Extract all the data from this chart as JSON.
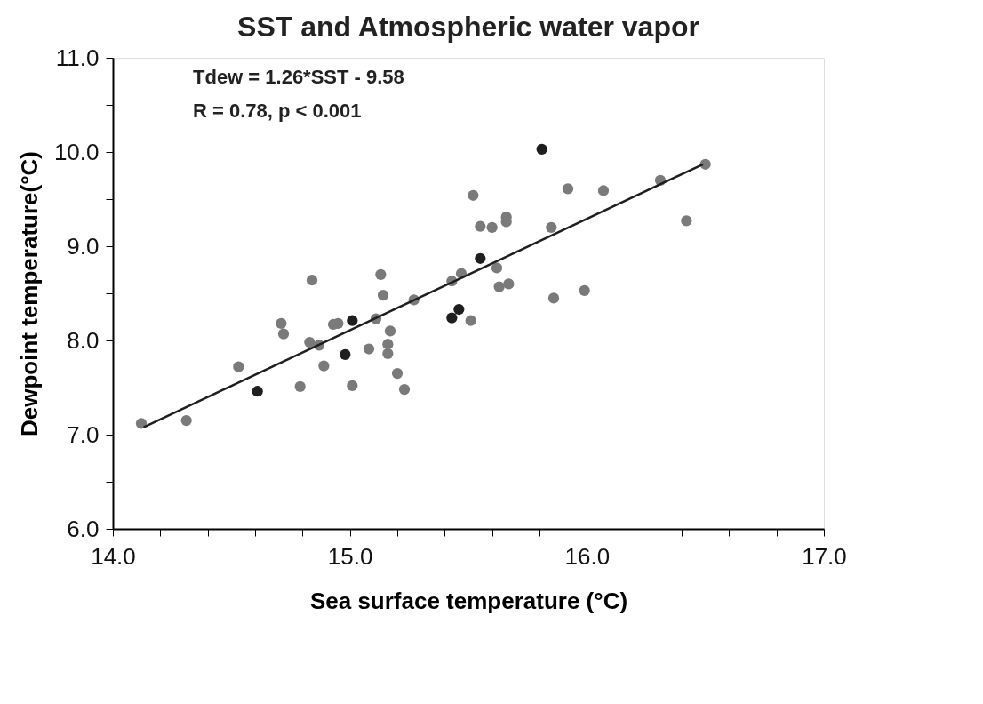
{
  "chart_data": {
    "type": "scatter",
    "title": "SST and Atmospheric water vapor",
    "xlabel": "Sea surface temperature (°C)",
    "ylabel": "Dewpoint temperature(°C)",
    "annotations": [
      "Tdew = 1.26*SST - 9.58",
      "R = 0.78, p < 0.001"
    ],
    "xlim": [
      14.0,
      17.0
    ],
    "ylim": [
      6.0,
      11.0
    ],
    "xticks": [
      {
        "value": 14.0,
        "label": "14.0"
      },
      {
        "value": 14.2,
        "label": null
      },
      {
        "value": 14.4,
        "label": null
      },
      {
        "value": 14.6,
        "label": null
      },
      {
        "value": 14.8,
        "label": null
      },
      {
        "value": 15.0,
        "label": "15.0"
      },
      {
        "value": 15.2,
        "label": null
      },
      {
        "value": 15.4,
        "label": null
      },
      {
        "value": 15.6,
        "label": null
      },
      {
        "value": 15.8,
        "label": null
      },
      {
        "value": 16.0,
        "label": "16.0"
      },
      {
        "value": 16.2,
        "label": null
      },
      {
        "value": 16.4,
        "label": null
      },
      {
        "value": 16.6,
        "label": null
      },
      {
        "value": 16.8,
        "label": null
      },
      {
        "value": 17.0,
        "label": "17.0"
      }
    ],
    "yticks": [
      {
        "value": 6.0,
        "label": "6.0"
      },
      {
        "value": 6.5,
        "label": null
      },
      {
        "value": 7.0,
        "label": "7.0"
      },
      {
        "value": 7.5,
        "label": null
      },
      {
        "value": 8.0,
        "label": "8.0"
      },
      {
        "value": 8.5,
        "label": null
      },
      {
        "value": 9.0,
        "label": "9.0"
      },
      {
        "value": 9.5,
        "label": null
      },
      {
        "value": 10.0,
        "label": "10.0"
      },
      {
        "value": 10.5,
        "label": null
      },
      {
        "value": 11.0,
        "label": "11.0"
      }
    ],
    "grid": false,
    "marker": "circle",
    "series": [
      {
        "color": "#7a7a7a",
        "x": [
          14.12,
          14.31,
          14.53,
          14.71,
          14.72,
          14.84,
          14.83,
          14.87,
          14.89,
          14.79,
          14.93,
          14.95,
          15.01,
          15.08,
          15.11,
          15.13,
          15.14,
          15.17,
          15.16,
          15.16,
          15.2,
          15.23,
          15.27,
          15.43,
          15.47,
          15.51,
          15.52,
          15.55,
          15.6,
          15.66,
          15.66,
          15.62,
          15.63,
          15.67,
          15.92,
          15.85,
          15.86,
          15.99,
          16.07,
          16.31,
          16.42,
          16.5
        ],
        "values": [
          7.12,
          7.15,
          7.72,
          8.18,
          8.07,
          8.64,
          7.98,
          7.95,
          7.73,
          7.51,
          8.17,
          8.18,
          7.52,
          7.91,
          8.23,
          8.7,
          8.48,
          8.1,
          7.96,
          7.86,
          7.65,
          7.48,
          8.43,
          8.63,
          8.71,
          8.21,
          9.54,
          9.21,
          9.2,
          9.31,
          9.26,
          8.77,
          8.57,
          8.6,
          9.61,
          9.2,
          8.45,
          8.53,
          9.59,
          9.7,
          9.27,
          9.87
        ]
      },
      {
        "color": "#1e1e1e",
        "x": [
          14.61,
          14.98,
          15.01,
          15.43,
          15.46,
          15.55,
          15.81
        ],
        "values": [
          7.46,
          7.85,
          8.21,
          8.24,
          8.33,
          8.87,
          10.03
        ]
      },
      {
        "type": "line",
        "marker": "none",
        "color": "#1e1e1e",
        "x": [
          14.13,
          16.49
        ],
        "values": [
          7.08,
          9.87
        ]
      }
    ]
  }
}
